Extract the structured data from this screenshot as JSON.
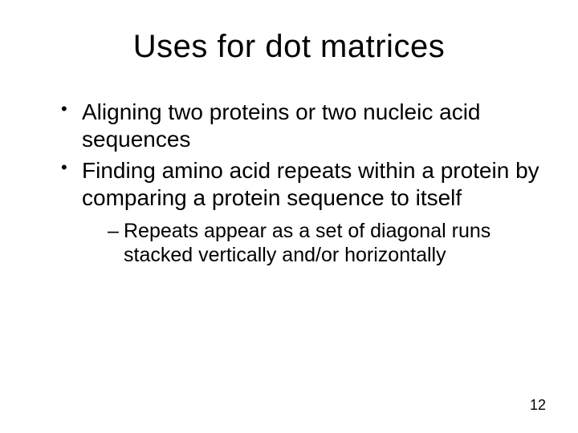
{
  "slide": {
    "title": "Uses for dot matrices",
    "bullets": [
      {
        "text": "Aligning two proteins or two nucleic acid sequences",
        "children": []
      },
      {
        "text": "Finding amino acid repeats within a protein by comparing a protein sequence to itself",
        "children": [
          {
            "text": "Repeats appear as a set of diagonal runs stacked vertically and/or horizontally"
          }
        ]
      }
    ],
    "page_number": "12"
  },
  "styling": {
    "background_color": "#ffffff",
    "text_color": "#000000",
    "font_family": "Comic Sans MS",
    "title_fontsize": 40,
    "bullet_l1_fontsize": 28,
    "bullet_l2_fontsize": 25,
    "page_number_fontsize": 18,
    "slide_width": 720,
    "slide_height": 540
  }
}
